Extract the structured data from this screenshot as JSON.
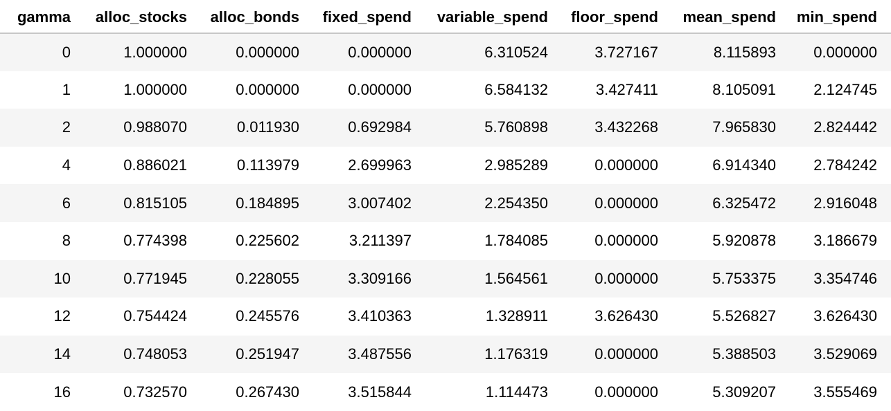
{
  "table": {
    "columns": [
      "gamma",
      "alloc_stocks",
      "alloc_bonds",
      "fixed_spend",
      "variable_spend",
      "floor_spend",
      "mean_spend",
      "min_spend"
    ],
    "rows": [
      [
        "0",
        "1.000000",
        "0.000000",
        "0.000000",
        "6.310524",
        "3.727167",
        "8.115893",
        "0.000000"
      ],
      [
        "1",
        "1.000000",
        "0.000000",
        "0.000000",
        "6.584132",
        "3.427411",
        "8.105091",
        "2.124745"
      ],
      [
        "2",
        "0.988070",
        "0.011930",
        "0.692984",
        "5.760898",
        "3.432268",
        "7.965830",
        "2.824442"
      ],
      [
        "4",
        "0.886021",
        "0.113979",
        "2.699963",
        "2.985289",
        "0.000000",
        "6.914340",
        "2.784242"
      ],
      [
        "6",
        "0.815105",
        "0.184895",
        "3.007402",
        "2.254350",
        "0.000000",
        "6.325472",
        "2.916048"
      ],
      [
        "8",
        "0.774398",
        "0.225602",
        "3.211397",
        "1.784085",
        "0.000000",
        "5.920878",
        "3.186679"
      ],
      [
        "10",
        "0.771945",
        "0.228055",
        "3.309166",
        "1.564561",
        "0.000000",
        "5.753375",
        "3.354746"
      ],
      [
        "12",
        "0.754424",
        "0.245576",
        "3.410363",
        "1.328911",
        "3.626430",
        "5.526827",
        "3.626430"
      ],
      [
        "14",
        "0.748053",
        "0.251947",
        "3.487556",
        "1.176319",
        "0.000000",
        "5.388503",
        "3.529069"
      ],
      [
        "16",
        "0.732570",
        "0.267430",
        "3.515844",
        "1.114473",
        "0.000000",
        "5.309207",
        "3.555469"
      ]
    ]
  },
  "colors": {
    "stripe": "#f5f5f5",
    "header_rule": "#c7c7c7",
    "text": "#000000"
  }
}
